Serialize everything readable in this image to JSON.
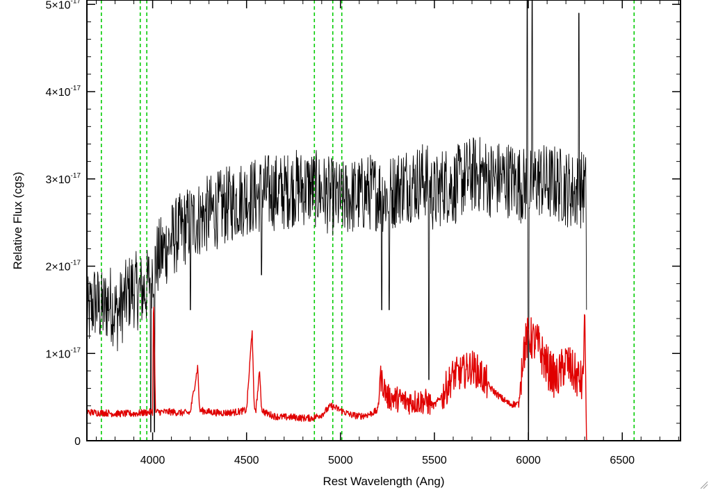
{
  "chart_data": {
    "type": "line",
    "title": "",
    "xlabel": "Rest Wavelength (Ang)",
    "ylabel": "Relative Flux (cgs)",
    "xlim": [
      3650,
      6810
    ],
    "ylim": [
      0,
      5.05e-17
    ],
    "x_ticks": [
      4000,
      4500,
      5000,
      5500,
      6000,
      6500
    ],
    "x_tick_labels": [
      "4000",
      "4500",
      "5000",
      "5500",
      "6000",
      "6500"
    ],
    "y_ticks": [
      0,
      1e-17,
      2e-17,
      3e-17,
      4e-17,
      5e-17
    ],
    "y_tick_labels": [
      {
        "mantissa": "0",
        "power": ""
      },
      {
        "mantissa": "1×10",
        "power": "-17"
      },
      {
        "mantissa": "2×10",
        "power": "-17"
      },
      {
        "mantissa": "3×10",
        "power": "-17"
      },
      {
        "mantissa": "4×10",
        "power": "-17"
      },
      {
        "mantissa": "5×10",
        "power": "-17"
      }
    ],
    "grid": false,
    "vertical_lines": {
      "color": "#00cc00",
      "style": "dashed",
      "x": [
        3727,
        3934,
        3969,
        4861,
        4959,
        5007,
        6563
      ]
    },
    "series": [
      {
        "color": "#000000",
        "x": [
          3650,
          3690,
          3730,
          3770,
          3810,
          3850,
          3890,
          3930,
          3970,
          4000,
          4050,
          4100,
          4150,
          4200,
          4250,
          4300,
          4350,
          4400,
          4450,
          4500,
          4550,
          4600,
          4650,
          4700,
          4750,
          4800,
          4850,
          4900,
          4950,
          5000,
          5050,
          5100,
          5150,
          5200,
          5250,
          5300,
          5350,
          5400,
          5450,
          5500,
          5550,
          5600,
          5650,
          5700,
          5750,
          5800,
          5850,
          5900,
          5950,
          6000,
          6050,
          6100,
          6150,
          6200,
          6250,
          6300,
          6310
        ],
        "y": [
          1.4e-17,
          1.6e-17,
          1.5e-17,
          1.6e-17,
          1.45e-17,
          1.6e-17,
          1.75e-17,
          1.7e-17,
          1.75e-17,
          2e-17,
          2.15e-17,
          2.3e-17,
          2.4e-17,
          2.5e-17,
          2.55e-17,
          2.6e-17,
          2.65e-17,
          2.7e-17,
          2.75e-17,
          2.8e-17,
          2.8e-17,
          2.85e-17,
          2.85e-17,
          2.85e-17,
          2.9e-17,
          2.9e-17,
          2.9e-17,
          2.85e-17,
          2.8e-17,
          2.75e-17,
          2.8e-17,
          2.8e-17,
          2.85e-17,
          2.85e-17,
          2.8e-17,
          2.9e-17,
          2.95e-17,
          2.95e-17,
          3e-17,
          2.8e-17,
          2.95e-17,
          2.9e-17,
          3e-17,
          3.05e-17,
          3.05e-17,
          3e-17,
          3e-17,
          3e-17,
          2.95e-17,
          2.9e-17,
          3e-17,
          2.95e-17,
          2.95e-17,
          2.9e-17,
          2.85e-17,
          2.9e-17,
          2.8e-17
        ],
        "noise_amplitude": 4.5e-18,
        "features": [
          {
            "x": 3990,
            "y": 1e-18
          },
          {
            "x": 4010,
            "y": 1e-18
          },
          {
            "x": 4200,
            "y": 1.5e-17
          },
          {
            "x": 4580,
            "y": 1.9e-17
          },
          {
            "x": 5220,
            "y": 1.5e-17
          },
          {
            "x": 5260,
            "y": 1.5e-17
          },
          {
            "x": 5470,
            "y": 7e-18
          },
          {
            "x": 5995,
            "y": 5.05e-17
          },
          {
            "x": 6000,
            "y": 0.0
          },
          {
            "x": 6020,
            "y": 5.05e-17
          },
          {
            "x": 6270,
            "y": 4.9e-17
          },
          {
            "x": 6310,
            "y": 1.5e-17
          }
        ]
      },
      {
        "color": "#e00000",
        "x": [
          3650,
          3700,
          3750,
          3800,
          3850,
          3900,
          3950,
          4000,
          4005,
          4015,
          4050,
          4100,
          4150,
          4200,
          4240,
          4250,
          4300,
          4350,
          4400,
          4450,
          4500,
          4530,
          4540,
          4550,
          4570,
          4580,
          4600,
          4650,
          4700,
          4750,
          4800,
          4850,
          4900,
          4950,
          5000,
          5050,
          5100,
          5150,
          5200,
          5210,
          5250,
          5300,
          5350,
          5400,
          5450,
          5500,
          5550,
          5600,
          5650,
          5700,
          5750,
          5800,
          5850,
          5900,
          5950,
          5970,
          6000,
          6050,
          6100,
          6150,
          6200,
          6250,
          6290,
          6300,
          6310,
          6315,
          6400,
          6500,
          6600,
          6700,
          6810
        ],
        "y": [
          3.3e-18,
          3.2e-18,
          3.2e-18,
          3.1e-18,
          3.1e-18,
          3.1e-18,
          3.2e-18,
          3.3e-18,
          1.7e-17,
          3.3e-18,
          3.3e-18,
          3.3e-18,
          3.2e-18,
          3.2e-18,
          8.5e-18,
          3.5e-18,
          3.3e-18,
          3.2e-18,
          3.2e-18,
          3.3e-18,
          3.5e-18,
          1.28e-17,
          3.8e-18,
          3.6e-18,
          8e-18,
          3.6e-18,
          3.2e-18,
          2.8e-18,
          2.7e-18,
          2.7e-18,
          2.6e-18,
          2.6e-18,
          3e-18,
          4e-18,
          3.5e-18,
          3e-18,
          2.8e-18,
          3e-18,
          3.5e-18,
          7.5e-18,
          5e-18,
          4.8e-18,
          4.5e-18,
          4.5e-18,
          4.5e-18,
          4e-18,
          5.5e-18,
          7.5e-18,
          7.8e-18,
          8.5e-18,
          7.5e-18,
          6e-18,
          5e-18,
          4.2e-18,
          4.2e-18,
          1e-17,
          1.2e-17,
          1.1e-17,
          8.5e-18,
          7e-18,
          9e-18,
          7.5e-18,
          6.5e-18,
          1.55e-17,
          0.0,
          0.0,
          0.0,
          0.0,
          0.0,
          0.0,
          0.0
        ],
        "noise_amplitude": 4e-19,
        "noisy_ranges": [
          {
            "x_from": 5200,
            "x_to": 5480,
            "amplitude": 1.5e-18
          },
          {
            "x_from": 5540,
            "x_to": 5780,
            "amplitude": 2e-18
          },
          {
            "x_from": 5960,
            "x_to": 6300,
            "amplitude": 2.5e-18
          }
        ]
      }
    ]
  }
}
